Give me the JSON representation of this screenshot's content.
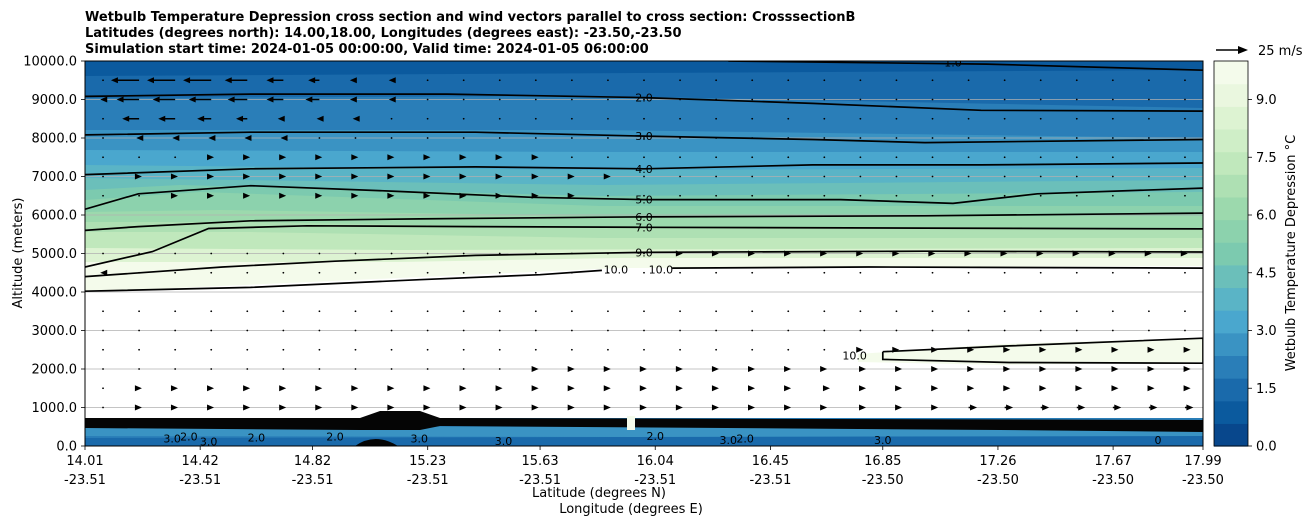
{
  "chart_data": {
    "type": "heatmap",
    "title_lines": [
      "Wetbulb Temperature Depression cross section and wind vectors parallel to cross section: CrosssectionB",
      "Latitudes (degrees north): 14.00,18.00, Longitudes (degrees east): -23.50,-23.50",
      "Simulation start time: 2024-01-05 00:00:00, Valid time: 2024-01-05 06:00:00"
    ],
    "xlabel_line1": "Latitude (degrees N)",
    "xlabel_line2": "Longitude (degrees E)",
    "ylabel": "Altitude (meters)",
    "x_ticks": [
      {
        "lat": "14.01",
        "lon": "-23.51"
      },
      {
        "lat": "14.42",
        "lon": "-23.51"
      },
      {
        "lat": "14.82",
        "lon": "-23.51"
      },
      {
        "lat": "15.23",
        "lon": "-23.51"
      },
      {
        "lat": "15.63",
        "lon": "-23.51"
      },
      {
        "lat": "16.04",
        "lon": "-23.51"
      },
      {
        "lat": "16.45",
        "lon": "-23.51"
      },
      {
        "lat": "16.85",
        "lon": "-23.50"
      },
      {
        "lat": "17.26",
        "lon": "-23.50"
      },
      {
        "lat": "17.67",
        "lon": "-23.50"
      },
      {
        "lat": "17.99",
        "lon": "-23.50"
      }
    ],
    "xlim": [
      14.01,
      17.99
    ],
    "y_ticks": [
      "0.0",
      "1000.0",
      "2000.0",
      "3000.0",
      "4000.0",
      "5000.0",
      "6000.0",
      "7000.0",
      "8000.0",
      "9000.0",
      "10000.0"
    ],
    "ylim": [
      0,
      10000
    ],
    "grid": "horizontal",
    "colorbar": {
      "label": "Wetbulb Temperature Depression °C",
      "ticks": [
        "0.0",
        "1.5",
        "3.0",
        "4.5",
        "6.0",
        "7.5",
        "9.0"
      ],
      "range": [
        0,
        10
      ],
      "colors": [
        "#08478c",
        "#0b5a9e",
        "#1a6aab",
        "#2a7eb8",
        "#3a93c3",
        "#4aa7ce",
        "#5ab4c6",
        "#6bbfba",
        "#7ccaaf",
        "#8cd2ad",
        "#9cd9ad",
        "#aee0b3",
        "#c0e8bc",
        "#cfeec7",
        "#ddf3d2",
        "#eaf7df",
        "#f4fbeb"
      ]
    },
    "quiver_key": {
      "label": "25 m/s",
      "speed": 25
    },
    "wind_vectors": [
      {
        "z": 9500,
        "u": [
          0,
          -10,
          -10,
          -10,
          -8,
          -6,
          -4,
          -2,
          -1,
          0,
          0,
          0,
          0,
          0,
          0,
          0,
          0,
          0,
          0,
          0,
          0,
          0,
          0,
          0,
          0,
          0,
          0,
          0,
          0,
          0,
          0
        ]
      },
      {
        "z": 9000,
        "u": [
          -1,
          -8,
          -8,
          -8,
          -7,
          -6,
          -5,
          -2,
          -1,
          0,
          0,
          0,
          0,
          0,
          0,
          0,
          0,
          0,
          0,
          0,
          0,
          0,
          0,
          0,
          0,
          0,
          0,
          0,
          0,
          0,
          0
        ]
      },
      {
        "z": 8500,
        "u": [
          0,
          -6,
          -6,
          -5,
          -4,
          -2,
          -1,
          -1,
          0,
          0,
          0,
          0,
          0,
          0,
          0,
          0,
          0,
          0,
          0,
          0,
          0,
          0,
          0,
          0,
          0,
          0,
          0,
          0,
          0,
          0,
          0
        ]
      },
      {
        "z": 8000,
        "u": [
          0,
          -1,
          -1,
          -1,
          -1,
          -1,
          0,
          0,
          0,
          0,
          0,
          0,
          0,
          0,
          0,
          0,
          0,
          0,
          0,
          0,
          0,
          0,
          0,
          0,
          0,
          0,
          0,
          0,
          0,
          0,
          0
        ]
      },
      {
        "z": 7500,
        "u": [
          0,
          0,
          0,
          1,
          1,
          1,
          1,
          1,
          1,
          1,
          1,
          1,
          1,
          0,
          0,
          0,
          0,
          0,
          0,
          0,
          0,
          0,
          0,
          0,
          0,
          0,
          0,
          0,
          0,
          0,
          0
        ]
      },
      {
        "z": 7000,
        "u": [
          0,
          1,
          1,
          1,
          1,
          1,
          1,
          1,
          1,
          1,
          1,
          1,
          1,
          1,
          1,
          0,
          0,
          0,
          0,
          0,
          0,
          0,
          0,
          0,
          0,
          0,
          0,
          0,
          0,
          0,
          0
        ]
      },
      {
        "z": 6500,
        "u": [
          0,
          0,
          1,
          1,
          1,
          1,
          1,
          1,
          1,
          1,
          1,
          1,
          1,
          1,
          0,
          0,
          0,
          0,
          0,
          0,
          0,
          0,
          0,
          0,
          0,
          0,
          0,
          0,
          0,
          0,
          0
        ]
      },
      {
        "z": 5000,
        "u": [
          0,
          0,
          0,
          0,
          0,
          0,
          0,
          0,
          0,
          0,
          0,
          0,
          0,
          0,
          0,
          0,
          1,
          1,
          1,
          1,
          1,
          1,
          1,
          1,
          1,
          1,
          1,
          1,
          1,
          1,
          1
        ]
      },
      {
        "z": 4500,
        "u": [
          -1,
          0,
          0,
          0,
          0,
          0,
          0,
          0,
          0,
          0,
          0,
          0,
          0,
          0,
          0,
          0,
          0,
          0,
          0,
          0,
          0,
          0,
          0,
          0,
          0,
          0,
          0,
          0,
          0,
          0,
          0
        ]
      },
      {
        "z": 3500,
        "u": [
          0,
          0,
          0,
          0,
          0,
          0,
          0,
          0,
          0,
          0,
          0,
          0,
          0,
          0,
          0,
          0,
          0,
          0,
          0,
          0,
          0,
          0,
          0,
          0,
          0,
          0,
          0,
          0,
          0,
          0,
          0
        ]
      },
      {
        "z": 3000,
        "u": [
          0,
          0,
          0,
          0,
          0,
          0,
          0,
          0,
          0,
          0,
          0,
          0,
          0,
          0,
          0,
          0,
          0,
          0,
          0,
          0,
          0,
          0,
          0,
          0,
          0,
          0,
          0,
          0,
          0,
          0,
          0
        ]
      },
      {
        "z": 2500,
        "u": [
          0,
          0,
          0,
          0,
          0,
          0,
          0,
          0,
          0,
          0,
          0,
          0,
          0,
          0,
          0,
          0,
          0,
          0,
          0,
          0,
          0,
          1,
          1,
          2,
          2,
          2,
          2,
          2,
          2,
          2,
          2
        ]
      },
      {
        "z": 2000,
        "u": [
          0,
          0,
          0,
          0,
          0,
          0,
          0,
          0,
          0,
          0,
          0,
          0,
          1,
          1,
          1,
          1,
          1,
          1,
          1,
          1,
          1,
          2,
          2,
          2,
          2,
          2,
          2,
          2,
          2,
          2,
          2
        ]
      },
      {
        "z": 1500,
        "u": [
          0,
          1,
          1,
          1,
          1,
          1,
          1,
          1,
          1,
          1,
          1,
          1,
          1,
          1,
          1,
          1,
          1,
          1,
          1,
          1,
          2,
          2,
          2,
          2,
          2,
          2,
          2,
          2,
          2,
          2,
          2
        ]
      },
      {
        "z": 1000,
        "u": [
          0,
          1,
          1,
          1,
          1,
          1,
          1,
          1,
          1,
          1,
          1,
          1,
          1,
          1,
          1,
          1,
          1,
          1,
          1,
          1,
          1,
          2,
          2,
          2,
          3,
          3,
          3,
          3,
          3,
          3,
          3
        ]
      }
    ],
    "contours": [
      {
        "label": "1.0",
        "points": [
          [
            16.3,
            10000
          ],
          [
            17.22,
            9920
          ],
          [
            17.99,
            9760
          ]
        ],
        "label_at": [
          17.1,
          9960
        ]
      },
      {
        "label": "2.0",
        "points": [
          [
            14.01,
            9080
          ],
          [
            14.6,
            9140
          ],
          [
            15.3,
            9140
          ],
          [
            16.0,
            9050
          ],
          [
            16.6,
            8900
          ],
          [
            17.2,
            8720
          ],
          [
            17.99,
            8700
          ]
        ],
        "label_at": [
          16.0,
          9050
        ]
      },
      {
        "label": "3.0",
        "points": [
          [
            14.01,
            8080
          ],
          [
            14.6,
            8150
          ],
          [
            15.4,
            8150
          ],
          [
            16.0,
            8050
          ],
          [
            16.6,
            7960
          ],
          [
            17.0,
            7880
          ],
          [
            17.99,
            7960
          ]
        ],
        "label_at": [
          16.0,
          8050
        ]
      },
      {
        "label": "4.0",
        "points": [
          [
            14.01,
            7050
          ],
          [
            14.6,
            7200
          ],
          [
            15.4,
            7250
          ],
          [
            16.0,
            7200
          ],
          [
            16.6,
            7300
          ],
          [
            17.2,
            7300
          ],
          [
            17.99,
            7350
          ]
        ],
        "label_at": [
          16.0,
          7200
        ]
      },
      {
        "label": "5.0",
        "points": [
          [
            14.01,
            6150
          ],
          [
            14.2,
            6550
          ],
          [
            14.6,
            6760
          ],
          [
            15.1,
            6620
          ],
          [
            15.6,
            6460
          ],
          [
            16.0,
            6400
          ],
          [
            16.7,
            6400
          ],
          [
            17.1,
            6300
          ],
          [
            17.4,
            6550
          ],
          [
            17.99,
            6700
          ]
        ],
        "label_at": [
          16.0,
          6400
        ]
      },
      {
        "label": "6.0",
        "points": [
          [
            14.01,
            5600
          ],
          [
            14.2,
            5700
          ],
          [
            14.6,
            5850
          ],
          [
            15.2,
            5900
          ],
          [
            15.8,
            5940
          ],
          [
            16.0,
            5950
          ],
          [
            17.0,
            5980
          ],
          [
            17.99,
            6050
          ]
        ],
        "label_at": [
          16.0,
          5950
        ]
      },
      {
        "label": "7.0",
        "points": [
          [
            14.01,
            4650
          ],
          [
            14.25,
            5050
          ],
          [
            14.45,
            5650
          ],
          [
            14.8,
            5720
          ],
          [
            15.4,
            5700
          ],
          [
            16.0,
            5680
          ],
          [
            17.0,
            5660
          ],
          [
            17.99,
            5640
          ]
        ],
        "label_at": [
          16.0,
          5680
        ]
      },
      {
        "label": "9.0",
        "points": [
          [
            14.01,
            4400
          ],
          [
            14.5,
            4650
          ],
          [
            14.9,
            4800
          ],
          [
            15.4,
            4950
          ],
          [
            16.0,
            5030
          ],
          [
            17.0,
            5060
          ],
          [
            17.99,
            5040
          ]
        ],
        "label_at": [
          16.0,
          5030
        ]
      },
      {
        "label": "10.0",
        "points": [
          [
            14.01,
            4020
          ],
          [
            14.6,
            4120
          ],
          [
            15.2,
            4320
          ],
          [
            15.63,
            4450
          ],
          [
            15.85,
            4560
          ]
        ],
        "label_at": [
          15.9,
          4590
        ]
      },
      {
        "label": "10.0",
        "points": [
          [
            16.1,
            4620
          ],
          [
            16.8,
            4650
          ],
          [
            17.99,
            4620
          ]
        ],
        "label_at": [
          16.06,
          4590
        ]
      },
      {
        "label": "10.0",
        "points": [
          [
            16.85,
            2450
          ],
          [
            17.3,
            2600
          ],
          [
            17.99,
            2800
          ],
          [
            17.99,
            2150
          ],
          [
            17.3,
            2170
          ],
          [
            16.85,
            2250
          ],
          [
            16.85,
            2450
          ]
        ],
        "label_at": [
          16.75,
          2350
        ]
      }
    ],
    "surface_labels": [
      {
        "text": "3.0",
        "x": 14.32,
        "z": 200
      },
      {
        "text": "2.0",
        "x": 14.38,
        "z": 250
      },
      {
        "text": "3.0",
        "x": 14.45,
        "z": 120
      },
      {
        "text": "2.0",
        "x": 14.62,
        "z": 220
      },
      {
        "text": "2.0",
        "x": 14.9,
        "z": 250
      },
      {
        "text": "3.0",
        "x": 15.2,
        "z": 200
      },
      {
        "text": "3.0",
        "x": 15.5,
        "z": 130
      },
      {
        "text": "2.0",
        "x": 16.04,
        "z": 260
      },
      {
        "text": "3.0",
        "x": 16.3,
        "z": 150
      },
      {
        "text": "2.0",
        "x": 16.36,
        "z": 200
      },
      {
        "text": "3.0",
        "x": 16.85,
        "z": 150
      },
      {
        "text": "0",
        "x": 17.83,
        "z": 160
      }
    ]
  }
}
